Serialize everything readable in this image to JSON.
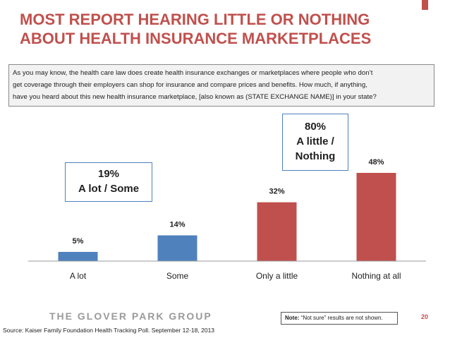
{
  "title": {
    "line1": "MOST REPORT HEARING LITTLE OR NOTHING",
    "line2": "ABOUT  HEALTH INSURANCE MARKETPLACES"
  },
  "question": {
    "line1": "As you may know, the health care law does create health insurance exchanges or marketplaces where people who don’t",
    "line2": "get coverage through their employers can shop for insurance and compare prices and benefits. How much, if anything,",
    "line3": "have you heard about this new health insurance marketplace, [also known as (STATE EXCHANGE NAME)] in your state?"
  },
  "callouts": {
    "left": {
      "pct": "19%",
      "label": "A lot / Some"
    },
    "right": {
      "pct": "80%",
      "line1": "A little /",
      "line2": "Nothing"
    }
  },
  "chart_data": {
    "type": "bar",
    "categories": [
      "A lot",
      "Some",
      "Only a little",
      "Nothing at all"
    ],
    "values": [
      5,
      14,
      32,
      48
    ],
    "value_labels": [
      "5%",
      "14%",
      "32%",
      "48%"
    ],
    "colors": [
      "#4f81bd",
      "#4f81bd",
      "#c0504d",
      "#c0504d"
    ],
    "ylim": [
      0,
      50
    ],
    "grid": false,
    "xlabel": "",
    "ylabel": ""
  },
  "footer": {
    "logo": "THE GLOVER PARK GROUP",
    "note_label": "Note:",
    "note_text": " “Not sure” results are not shown.",
    "page": "20",
    "source": "Source: Kaiser Family Foundation Health Tracking Poll. September 12-18, 2013"
  }
}
